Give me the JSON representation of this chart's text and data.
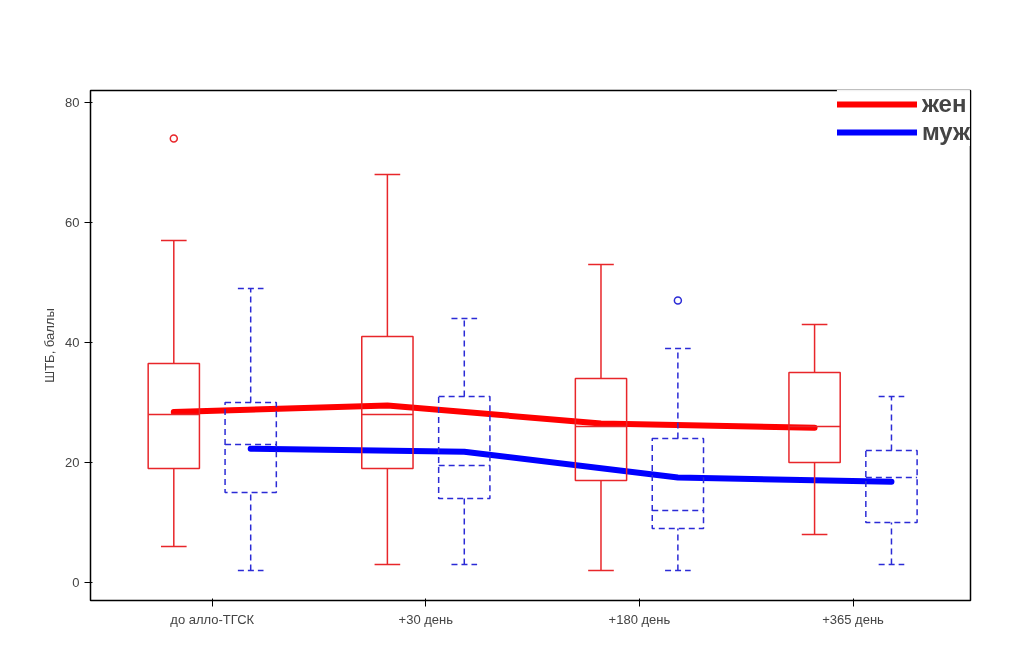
{
  "chart_data": {
    "type": "box",
    "ylabel": "ШТБ, баллы",
    "categories": [
      "до алло-ТГСК",
      "+30 день",
      "+180 день",
      "+365 день"
    ],
    "ylim": [
      -3,
      82
    ],
    "yticks": [
      0,
      20,
      40,
      60,
      80
    ],
    "grid": false,
    "legend": "top right",
    "series": [
      {
        "name": "жен",
        "type": "line",
        "color": "#ff0000",
        "values": [
          28.4,
          29.5,
          26.5,
          25.8
        ]
      },
      {
        "name": "муж",
        "type": "line",
        "color": "#0000ff",
        "values": [
          22.3,
          21.8,
          17.5,
          16.8
        ]
      },
      {
        "color": "#e8262a",
        "line_style": "solid",
        "boxes": [
          {
            "low": 6,
            "q1": 19,
            "median": 28,
            "q3": 36.5,
            "high": 57,
            "outliers": [
              74
            ]
          },
          {
            "low": 3,
            "q1": 19,
            "median": 28,
            "q3": 41,
            "high": 68
          },
          {
            "low": 2,
            "q1": 17,
            "median": 26,
            "q3": 34,
            "high": 53
          },
          {
            "low": 8,
            "q1": 20,
            "median": 26,
            "q3": 35,
            "high": 43
          }
        ]
      },
      {
        "color": "#2b2bd6",
        "line_style": "dashed",
        "boxes": [
          {
            "low": 2,
            "q1": 15,
            "median": 23,
            "q3": 30,
            "high": 49
          },
          {
            "low": 3,
            "q1": 14,
            "median": 19.5,
            "q3": 31,
            "high": 44
          },
          {
            "low": 2,
            "q1": 9,
            "median": 12,
            "q3": 24,
            "high": 39,
            "outliers": [
              47
            ]
          },
          {
            "low": 3,
            "q1": 10,
            "median": 17.5,
            "q3": 22,
            "high": 31
          }
        ]
      }
    ]
  }
}
